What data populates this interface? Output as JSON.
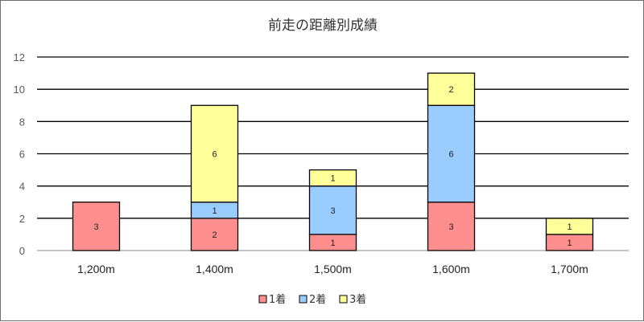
{
  "chart_data": {
    "type": "bar",
    "stacked": true,
    "title": "前走の距離別成績",
    "xlabel": "",
    "ylabel": "",
    "categories": [
      "1,200m",
      "1,400m",
      "1,500m",
      "1,600m",
      "1,700m"
    ],
    "series": [
      {
        "name": "1着",
        "color": "#ff8f8f",
        "values": [
          3,
          2,
          1,
          3,
          1
        ]
      },
      {
        "name": "2着",
        "color": "#99ccff",
        "values": [
          0,
          1,
          3,
          6,
          0
        ]
      },
      {
        "name": "3着",
        "color": "#ffff99",
        "values": [
          0,
          6,
          1,
          2,
          1
        ]
      }
    ],
    "ylim": [
      0,
      12
    ],
    "yticks": [
      0,
      2,
      4,
      6,
      8,
      10,
      12
    ],
    "grid": true,
    "legend": "bottom"
  }
}
